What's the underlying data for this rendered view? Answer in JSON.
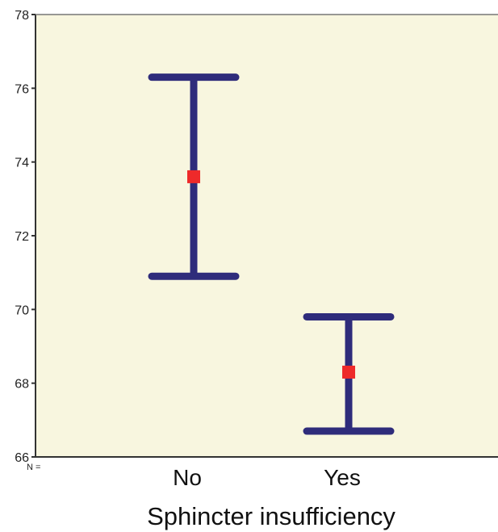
{
  "chart_data": {
    "type": "errorbar",
    "categories": [
      "No",
      "Yes"
    ],
    "series": [
      {
        "points": [
          {
            "category": "No",
            "mean": 73.6,
            "lower": 70.9,
            "upper": 76.3
          },
          {
            "category": "Yes",
            "mean": 68.3,
            "lower": 66.7,
            "upper": 69.8
          }
        ]
      }
    ],
    "xlabel": "Sphincter insufficiency",
    "ylabel": "",
    "ylim": [
      66,
      78
    ],
    "yticks": [
      66,
      68,
      70,
      72,
      74,
      76,
      78
    ],
    "n_label": "N =",
    "grid": false,
    "colors": {
      "plot_background": "#f8f6df",
      "bar": "#2f2c7b",
      "mean_marker": "#ee2a2a",
      "axis": "#555555"
    }
  }
}
